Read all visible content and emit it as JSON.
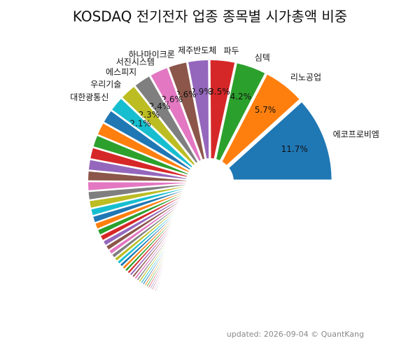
{
  "chart_data": {
    "type": "pie",
    "title": "KOSDAQ 전기전자 업종 종목별 시가총액 비중",
    "footer": "updated: 2026-09-04 © QuantKang",
    "categories": [
      "에코프로비엠",
      "리노공업",
      "심텍",
      "파두",
      "제주반도체",
      "하나마이크론",
      "서진시스템",
      "에스피지",
      "우리기술",
      "대한광통신",
      null,
      null,
      null,
      null,
      null,
      null,
      null,
      null,
      null,
      null,
      null,
      null,
      null,
      null,
      null,
      null,
      null,
      null,
      null,
      null,
      null,
      null,
      null,
      null,
      null,
      null,
      null,
      null,
      null,
      null,
      null,
      null,
      null,
      null,
      null,
      null,
      null,
      null,
      null,
      null,
      null,
      null,
      null,
      null,
      null,
      null,
      null,
      null,
      null,
      null,
      null,
      null,
      null,
      null,
      null,
      null,
      null,
      null,
      null,
      null,
      null,
      null,
      null,
      null,
      null,
      null,
      null,
      null,
      null,
      null
    ],
    "values": [
      11.7,
      5.7,
      4.2,
      3.5,
      2.9,
      2.6,
      2.6,
      2.4,
      2.3,
      2.1,
      1.9,
      1.8,
      1.7,
      1.6,
      1.5,
      1.4,
      1.3,
      1.2,
      1.1,
      1.0,
      0.95,
      0.9,
      0.85,
      0.8,
      0.75,
      0.7,
      0.65,
      0.6,
      0.55,
      0.5,
      0.48,
      0.46,
      0.44,
      0.42,
      0.4,
      0.38,
      0.36,
      0.34,
      0.32,
      0.3,
      0.29,
      0.28,
      0.27,
      0.26,
      0.25,
      0.24,
      0.23,
      0.22,
      0.21,
      0.2,
      0.19,
      0.18,
      0.17,
      0.16,
      0.15,
      0.14,
      0.13,
      0.12,
      0.11,
      0.1,
      0.1,
      0.09,
      0.09,
      0.08,
      0.08,
      0.07,
      0.07,
      0.06,
      0.06,
      0.05,
      0.05,
      0.05,
      0.04,
      0.04,
      0.04,
      0.03,
      0.03,
      0.03,
      0.02,
      0.02
    ],
    "value_labels": [
      "11.7%",
      "5.7%",
      "4.2%",
      "3.5%",
      "2.9%",
      "2.6%",
      "2.6%",
      "2.4%",
      "2.3%",
      "2.1%",
      null,
      null,
      null,
      null,
      null,
      null,
      null,
      null,
      null,
      null,
      null,
      null,
      null,
      null,
      null,
      null,
      null,
      null,
      null,
      null,
      null,
      null,
      null,
      null,
      null,
      null,
      null,
      null,
      null,
      null,
      null,
      null,
      null,
      null,
      null,
      null,
      null,
      null,
      null,
      null,
      null,
      null,
      null,
      null,
      null,
      null,
      null,
      null,
      null,
      null,
      null,
      null,
      null,
      null,
      null,
      null,
      null,
      null,
      null,
      null,
      null,
      null,
      null,
      null,
      null,
      null,
      null,
      null,
      null,
      null
    ],
    "colors": [
      "#1f77b4",
      "#ff7f0e",
      "#2ca02c",
      "#d62728",
      "#9467bd",
      "#8c564b",
      "#e377c2",
      "#7f7f7f",
      "#bcbd22",
      "#17becf"
    ]
  }
}
